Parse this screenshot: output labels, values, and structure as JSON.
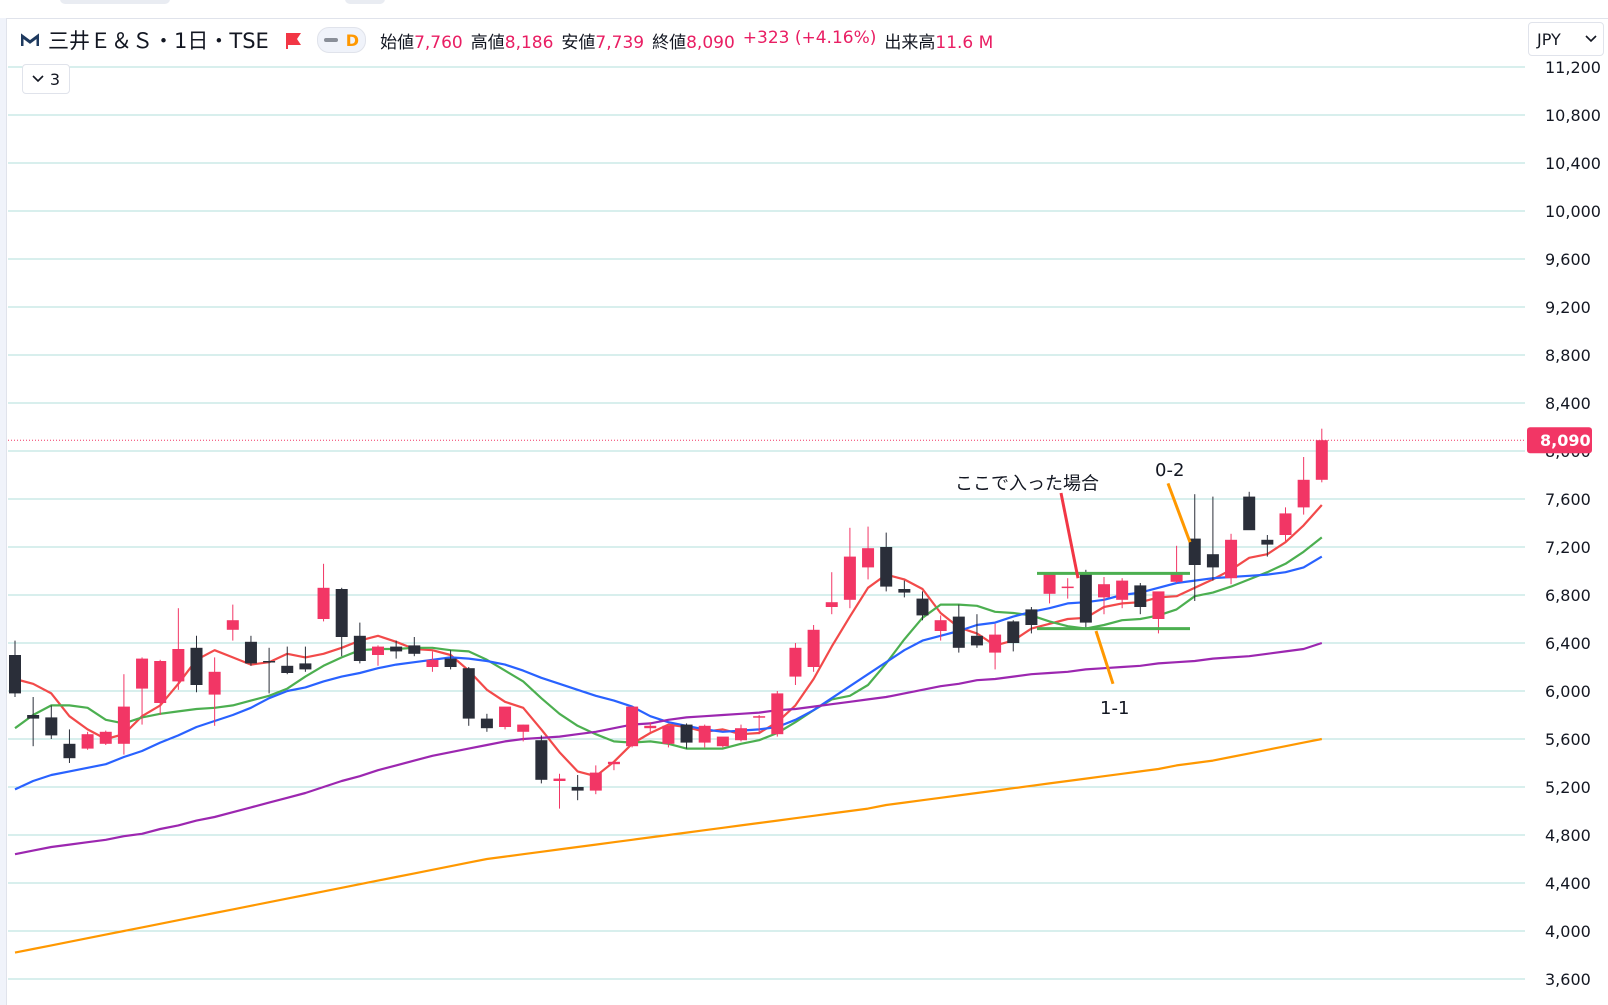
{
  "header": {
    "symbol": "三井Ｅ＆Ｓ・1日・TSE",
    "interval_badge": "D",
    "open_label": "始値",
    "open_value": "7,760",
    "high_label": "高値",
    "high_value": "8,186",
    "low_label": "安値",
    "low_value": "7,739",
    "close_label": "終値",
    "close_value": "8,090",
    "change": "+323 (+4.16%)",
    "volume_label": "出来高",
    "volume_value": "11.6 M",
    "collapse_count": "3",
    "currency": "JPY"
  },
  "colors": {
    "up": "#f23665",
    "down": "#2a2e39",
    "ma5": "#f24a4a",
    "ma10": "#4caf50",
    "ma20": "#2962ff",
    "ma60": "#9c27b0",
    "ma120": "#ff9800",
    "grid": "#b2dfdb",
    "annotation_red": "#f23645",
    "annotation_orange": "#ff9800",
    "annotation_green": "#4caf50"
  },
  "chart_data": {
    "type": "candlestick",
    "y_range": [
      3400,
      11400
    ],
    "y_ticks": [
      "11,200",
      "10,800",
      "10,400",
      "10,000",
      "9,600",
      "9,200",
      "8,800",
      "8,400",
      "8,000",
      "7,600",
      "7,200",
      "6,800",
      "6,400",
      "6,000",
      "5,600",
      "5,200",
      "4,800",
      "4,400",
      "4,000",
      "3,600"
    ],
    "last_price": 8090,
    "last_price_label": "8,090",
    "candles": [
      [
        6300,
        6420,
        5950,
        5980
      ],
      [
        5800,
        5950,
        5540,
        5770
      ],
      [
        5780,
        5880,
        5600,
        5630
      ],
      [
        5560,
        5680,
        5400,
        5440
      ],
      [
        5520,
        5660,
        5510,
        5640
      ],
      [
        5560,
        5670,
        5550,
        5660
      ],
      [
        5560,
        6140,
        5470,
        5870
      ],
      [
        6020,
        6280,
        5720,
        6270
      ],
      [
        5900,
        6260,
        5800,
        6250
      ],
      [
        6080,
        6690,
        6010,
        6350
      ],
      [
        6360,
        6460,
        5990,
        6050
      ],
      [
        5970,
        6280,
        5710,
        6160
      ],
      [
        6510,
        6720,
        6420,
        6590
      ],
      [
        6410,
        6460,
        6210,
        6230
      ],
      [
        6250,
        6360,
        5980,
        6240
      ],
      [
        6210,
        6370,
        6140,
        6150
      ],
      [
        6230,
        6370,
        6160,
        6180
      ],
      [
        6600,
        7060,
        6580,
        6860
      ],
      [
        6850,
        6860,
        6290,
        6450
      ],
      [
        6460,
        6570,
        6230,
        6250
      ],
      [
        6300,
        6380,
        6210,
        6370
      ],
      [
        6370,
        6420,
        6270,
        6330
      ],
      [
        6380,
        6450,
        6290,
        6310
      ],
      [
        6200,
        6330,
        6160,
        6260
      ],
      [
        6270,
        6340,
        6180,
        6200
      ],
      [
        6190,
        6200,
        5710,
        5770
      ],
      [
        5770,
        5810,
        5660,
        5690
      ],
      [
        5700,
        5850,
        5680,
        5870
      ],
      [
        5660,
        5720,
        5580,
        5720
      ],
      [
        5590,
        5630,
        5230,
        5260
      ],
      [
        5250,
        5310,
        5020,
        5270
      ],
      [
        5200,
        5300,
        5090,
        5170
      ],
      [
        5170,
        5380,
        5140,
        5320
      ],
      [
        5390,
        5400,
        5340,
        5410
      ],
      [
        5540,
        5870,
        5530,
        5870
      ],
      [
        5690,
        5740,
        5660,
        5710
      ],
      [
        5560,
        5700,
        5530,
        5710
      ],
      [
        5720,
        5730,
        5520,
        5570
      ],
      [
        5570,
        5720,
        5530,
        5710
      ],
      [
        5540,
        5600,
        5530,
        5620
      ],
      [
        5590,
        5720,
        5580,
        5690
      ],
      [
        5780,
        5800,
        5640,
        5790
      ],
      [
        5640,
        6000,
        5620,
        5980
      ],
      [
        6120,
        6400,
        6050,
        6360
      ],
      [
        6200,
        6550,
        6160,
        6510
      ],
      [
        6700,
        6990,
        6640,
        6740
      ],
      [
        6760,
        7360,
        6690,
        7120
      ],
      [
        7030,
        7370,
        6930,
        7190
      ],
      [
        7200,
        7320,
        6830,
        6870
      ],
      [
        6850,
        6920,
        6780,
        6820
      ],
      [
        6770,
        6830,
        6590,
        6630
      ],
      [
        6500,
        6630,
        6420,
        6590
      ],
      [
        6620,
        6720,
        6320,
        6360
      ],
      [
        6460,
        6640,
        6360,
        6380
      ],
      [
        6320,
        6560,
        6180,
        6470
      ],
      [
        6580,
        6590,
        6330,
        6400
      ],
      [
        6680,
        6700,
        6480,
        6550
      ],
      [
        6810,
        6990,
        6730,
        6980
      ],
      [
        6860,
        6940,
        6770,
        6870
      ],
      [
        6990,
        7010,
        6510,
        6570
      ],
      [
        6780,
        6950,
        6640,
        6890
      ],
      [
        6760,
        6940,
        6690,
        6920
      ],
      [
        6880,
        6900,
        6640,
        6700
      ],
      [
        6600,
        6790,
        6480,
        6830
      ],
      [
        6910,
        7210,
        6900,
        6980
      ],
      [
        7270,
        7640,
        6750,
        7050
      ],
      [
        7140,
        7620,
        6920,
        7030
      ],
      [
        6940,
        7310,
        6890,
        7260
      ],
      [
        7620,
        7660,
        7350,
        7340
      ],
      [
        7260,
        7300,
        7120,
        7220
      ],
      [
        7300,
        7530,
        7250,
        7480
      ],
      [
        7530,
        7950,
        7470,
        7760
      ],
      [
        7760,
        8186,
        7739,
        8090
      ]
    ],
    "series": [
      {
        "key": "ma5",
        "values": [
          6100,
          6060,
          5980,
          5790,
          5680,
          5600,
          5640,
          5790,
          5880,
          6060,
          6260,
          6340,
          6280,
          6220,
          6240,
          6310,
          6280,
          6310,
          6360,
          6420,
          6460,
          6410,
          6350,
          6340,
          6300,
          6170,
          6010,
          5910,
          5860,
          5680,
          5490,
          5330,
          5290,
          5410,
          5560,
          5650,
          5720,
          5700,
          5660,
          5680,
          5640,
          5650,
          5740,
          5880,
          6100,
          6370,
          6620,
          6860,
          6970,
          6930,
          6850,
          6650,
          6530,
          6480,
          6380,
          6420,
          6520,
          6560,
          6600,
          6610,
          6700,
          6730,
          6740,
          6780,
          6790,
          6860,
          6930,
          7010,
          7110,
          7140,
          7240,
          7380,
          7550
        ]
      },
      {
        "key": "ma10",
        "values": [
          5690,
          5800,
          5880,
          5880,
          5860,
          5760,
          5730,
          5780,
          5810,
          5830,
          5850,
          5860,
          5880,
          5920,
          5960,
          6020,
          6120,
          6210,
          6280,
          6340,
          6350,
          6350,
          6360,
          6360,
          6340,
          6330,
          6260,
          6170,
          6080,
          5940,
          5810,
          5710,
          5640,
          5580,
          5570,
          5580,
          5560,
          5520,
          5520,
          5520,
          5560,
          5590,
          5650,
          5740,
          5840,
          5930,
          5960,
          6050,
          6230,
          6430,
          6610,
          6720,
          6720,
          6710,
          6660,
          6650,
          6630,
          6580,
          6540,
          6520,
          6550,
          6590,
          6600,
          6630,
          6680,
          6790,
          6820,
          6870,
          6930,
          6990,
          7060,
          7160,
          7280
        ]
      },
      {
        "key": "ma20",
        "values": [
          5180,
          5250,
          5300,
          5330,
          5360,
          5390,
          5450,
          5500,
          5570,
          5630,
          5700,
          5750,
          5800,
          5860,
          5940,
          6000,
          6030,
          6080,
          6120,
          6150,
          6190,
          6220,
          6240,
          6260,
          6280,
          6270,
          6250,
          6220,
          6170,
          6110,
          6060,
          6010,
          5960,
          5920,
          5870,
          5790,
          5740,
          5710,
          5680,
          5660,
          5670,
          5680,
          5700,
          5760,
          5840,
          5940,
          6040,
          6140,
          6240,
          6340,
          6420,
          6460,
          6500,
          6550,
          6570,
          6620,
          6660,
          6690,
          6730,
          6740,
          6760,
          6800,
          6820,
          6860,
          6900,
          6920,
          6940,
          6950,
          6960,
          6970,
          6990,
          7030,
          7120
        ]
      },
      {
        "key": "ma60",
        "values": [
          4640,
          4670,
          4700,
          4720,
          4740,
          4760,
          4790,
          4810,
          4850,
          4880,
          4920,
          4950,
          4990,
          5030,
          5070,
          5110,
          5150,
          5200,
          5250,
          5290,
          5340,
          5380,
          5420,
          5460,
          5490,
          5520,
          5550,
          5580,
          5600,
          5610,
          5620,
          5640,
          5660,
          5690,
          5720,
          5730,
          5760,
          5780,
          5790,
          5800,
          5810,
          5820,
          5840,
          5850,
          5870,
          5890,
          5910,
          5930,
          5950,
          5980,
          6010,
          6040,
          6060,
          6090,
          6100,
          6120,
          6140,
          6150,
          6160,
          6180,
          6190,
          6200,
          6210,
          6230,
          6240,
          6250,
          6270,
          6280,
          6290,
          6310,
          6330,
          6350,
          6400
        ]
      },
      {
        "key": "ma120",
        "values": [
          3820,
          3850,
          3880,
          3910,
          3940,
          3970,
          4000,
          4030,
          4060,
          4090,
          4120,
          4150,
          4180,
          4210,
          4240,
          4270,
          4300,
          4330,
          4360,
          4390,
          4420,
          4450,
          4480,
          4510,
          4540,
          4570,
          4600,
          4620,
          4640,
          4660,
          4680,
          4700,
          4720,
          4740,
          4760,
          4780,
          4800,
          4820,
          4840,
          4860,
          4880,
          4900,
          4920,
          4940,
          4960,
          4980,
          5000,
          5020,
          5050,
          5070,
          5090,
          5110,
          5130,
          5150,
          5170,
          5190,
          5210,
          5230,
          5250,
          5270,
          5290,
          5310,
          5330,
          5350,
          5380,
          5400,
          5420,
          5450,
          5480,
          5510,
          5540,
          5570,
          5600
        ]
      }
    ],
    "annotations": [
      {
        "text": "ここで入った場合",
        "color": "red"
      },
      {
        "text": "0-2",
        "color": "orange"
      },
      {
        "text": "1-1",
        "color": "orange"
      }
    ]
  }
}
